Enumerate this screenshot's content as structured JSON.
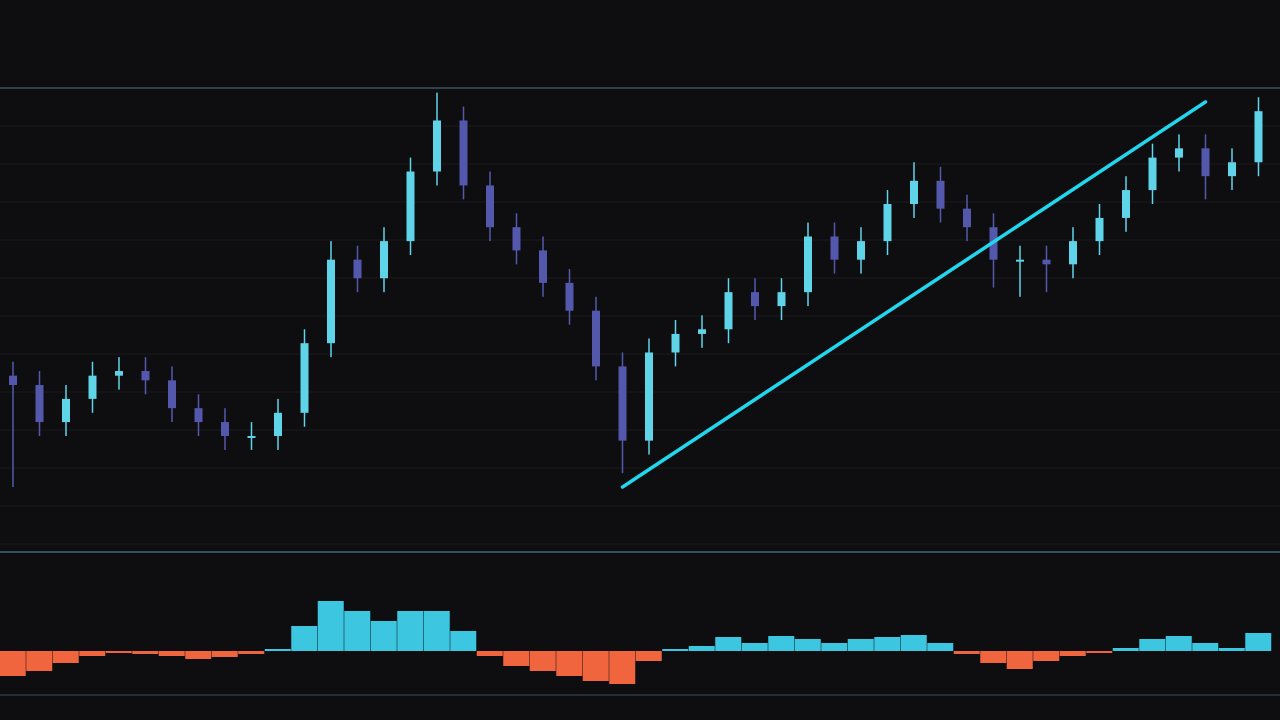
{
  "chart_data": [
    {
      "type": "candlestick",
      "open": [
        38,
        36,
        28,
        33,
        38,
        39,
        37,
        31,
        28,
        25,
        25,
        30,
        45,
        63,
        59,
        67,
        82,
        93,
        79,
        70,
        65,
        58,
        52,
        40,
        24,
        43,
        47,
        48,
        56,
        53,
        56,
        68,
        63,
        67,
        75,
        80,
        74,
        70,
        63,
        63,
        62,
        67,
        72,
        78,
        85,
        87,
        81,
        84
      ],
      "high": [
        41,
        39,
        36,
        41,
        42,
        42,
        40,
        34,
        31,
        28,
        33,
        48,
        67,
        66,
        70,
        85,
        99,
        96,
        82,
        73,
        68,
        61,
        55,
        43,
        46,
        50,
        51,
        59,
        59,
        59,
        71,
        71,
        70,
        78,
        84,
        83,
        77,
        73,
        66,
        66,
        70,
        75,
        81,
        88,
        90,
        90,
        87,
        98
      ],
      "low": [
        14,
        25,
        25,
        30,
        35,
        34,
        28,
        25,
        22,
        22,
        22,
        27,
        42,
        56,
        56,
        64,
        79,
        76,
        67,
        62,
        55,
        49,
        37,
        17,
        21,
        40,
        44,
        45,
        50,
        50,
        53,
        60,
        60,
        64,
        72,
        71,
        67,
        57,
        55,
        56,
        59,
        64,
        69,
        75,
        82,
        76,
        78,
        81
      ],
      "close": [
        36,
        28,
        33,
        38,
        39,
        37,
        31,
        28,
        25,
        25,
        30,
        45,
        63,
        59,
        67,
        82,
        93,
        79,
        70,
        65,
        58,
        52,
        40,
        24,
        43,
        47,
        48,
        56,
        53,
        56,
        68,
        63,
        67,
        75,
        80,
        74,
        70,
        63,
        63,
        62,
        67,
        72,
        78,
        85,
        87,
        81,
        84,
        95
      ],
      "color_up": "#5fd3e8",
      "color_down": "#5458ad",
      "ylim": [
        0,
        100
      ],
      "trendline": {
        "x": [
          23,
          45
        ],
        "y": [
          14,
          97
        ],
        "color": "#22d6ee"
      }
    },
    {
      "type": "bar",
      "values": [
        -25,
        -20,
        -12,
        -5,
        -2,
        -3,
        -5,
        -8,
        -6,
        -3,
        2,
        25,
        50,
        40,
        30,
        40,
        40,
        20,
        -5,
        -15,
        -20,
        -25,
        -30,
        -33,
        -10,
        2,
        5,
        14,
        8,
        15,
        12,
        8,
        12,
        14,
        16,
        8,
        -3,
        -12,
        -18,
        -10,
        -5,
        -2,
        3,
        12,
        15,
        8,
        3,
        18
      ],
      "color_up": "#3cc6e0",
      "color_down": "#f0643e",
      "ylim": [
        -44,
        96
      ]
    }
  ]
}
